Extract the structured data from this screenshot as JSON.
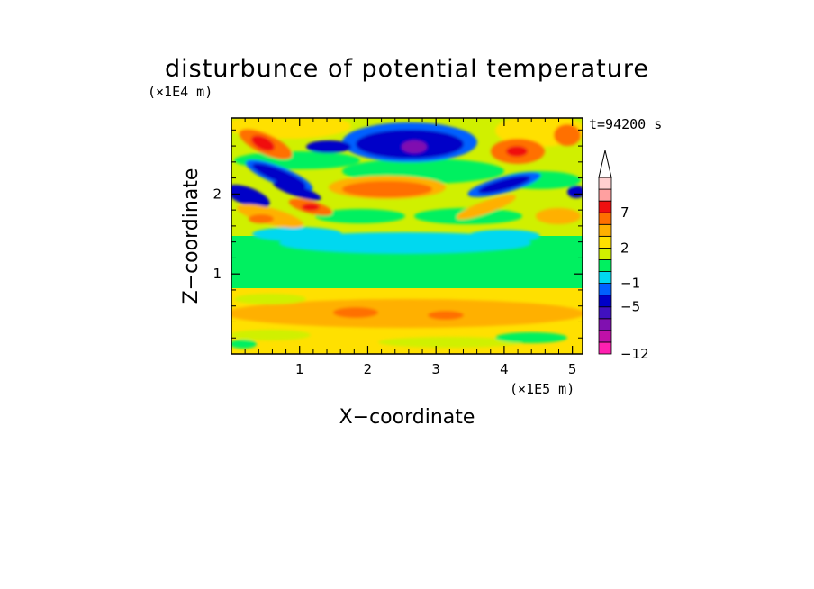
{
  "chart_data": {
    "type": "heatmap",
    "title": "disturbunce of potential temperature",
    "xlabel": "X−coordinate",
    "ylabel": "Z−coordinate",
    "x_unit": "(×1E5 m)",
    "y_unit": "(×1E4 m)",
    "time_label": "t=94200 s",
    "xlim": [
      0,
      5.15
    ],
    "ylim": [
      0,
      2.95
    ],
    "x_ticks": [
      "1",
      "2",
      "3",
      "4",
      "5"
    ],
    "y_ticks": [
      "1",
      "2"
    ],
    "colorbar": {
      "levels": [
        -12,
        -11,
        -9,
        -7,
        -5,
        -3,
        -1,
        0,
        1,
        2,
        3,
        5,
        7,
        8,
        9
      ],
      "labels": [
        "−12",
        "−5",
        "−1",
        "2",
        "7"
      ],
      "colors": [
        "#ff20b0",
        "#c010a8",
        "#8010b0",
        "#4010c0",
        "#0000c8",
        "#0060ff",
        "#00d8f0",
        "#00f060",
        "#d0f000",
        "#ffe000",
        "#ffb000",
        "#ff7000",
        "#f01010",
        "#ffa0a0",
        "#ffd0d0"
      ],
      "extend_top": true
    },
    "features": [
      {
        "x": 0.5,
        "z": 2.6,
        "value": 7
      },
      {
        "x": 0.65,
        "z": 2.4,
        "value": -5
      },
      {
        "x": 0.15,
        "z": 2.0,
        "value": -5
      },
      {
        "x": 1.0,
        "z": 2.05,
        "value": -5
      },
      {
        "x": 0.6,
        "z": 1.95,
        "value": 5
      },
      {
        "x": 1.1,
        "z": 1.8,
        "value": 7
      },
      {
        "x": 0.4,
        "z": 1.65,
        "value": 5
      },
      {
        "x": 1.4,
        "z": 2.6,
        "value": -3
      },
      {
        "x": 2.7,
        "z": 2.6,
        "value": -7
      },
      {
        "x": 2.1,
        "z": 2.8,
        "value": -5
      },
      {
        "x": 2.4,
        "z": 2.05,
        "value": 5
      },
      {
        "x": 4.15,
        "z": 2.6,
        "value": 7
      },
      {
        "x": 4.3,
        "z": 2.1,
        "value": -5
      },
      {
        "x": 4.05,
        "z": 1.75,
        "value": 3
      },
      {
        "x": 2.6,
        "z": 1.4,
        "value": -1
      },
      {
        "x": 0.55,
        "z": 1.3,
        "value": -1
      },
      {
        "x": 2.6,
        "z": 0.5,
        "value": 3
      },
      {
        "x": 0.8,
        "z": 0.55,
        "value": 3
      }
    ]
  }
}
